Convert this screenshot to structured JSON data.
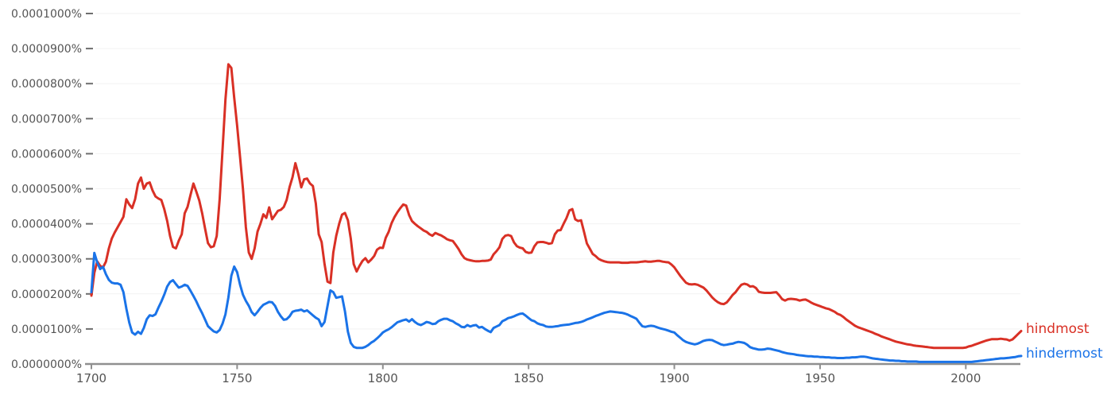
{
  "chart_data": {
    "type": "line",
    "title": "",
    "x_axis": {
      "start_year": 1700,
      "end_year": 2019,
      "tick_labels": [
        "1700",
        "1750",
        "1800",
        "1850",
        "1900",
        "1950",
        "2000"
      ]
    },
    "y_axis": {
      "tick_labels": [
        "0.0001000%",
        "0.0000900%",
        "0.0000800%",
        "0.0000700%",
        "0.0000600%",
        "0.0000500%",
        "0.0000400%",
        "0.0000300%",
        "0.0000200%",
        "0.0000100%",
        "0.0000000%"
      ],
      "min_percent": 0,
      "max_percent": 0.0001,
      "value_unit": "1e-7 percent (stored values x 1e-7 = displayed %)"
    },
    "grid": true,
    "legend_position": "right-end-of-line",
    "colors": {
      "gridline": "#f2f2f2",
      "axis_line": "#8f8f8f",
      "tick": "#6e6e6e",
      "axis_label": "#545454"
    },
    "series": [
      {
        "name": "hindmost",
        "color": "#d93025",
        "start_year": 1700,
        "step_years": 1,
        "values": [
          195,
          260,
          293,
          280,
          276,
          292,
          330,
          358,
          375,
          390,
          405,
          420,
          470,
          455,
          445,
          470,
          515,
          532,
          500,
          515,
          518,
          495,
          478,
          472,
          468,
          442,
          408,
          365,
          334,
          330,
          352,
          370,
          430,
          448,
          482,
          515,
          492,
          467,
          430,
          387,
          345,
          333,
          336,
          365,
          470,
          610,
          755,
          855,
          845,
          760,
          680,
          590,
          500,
          390,
          318,
          300,
          330,
          378,
          400,
          427,
          417,
          447,
          413,
          425,
          437,
          440,
          448,
          468,
          505,
          533,
          573,
          542,
          504,
          527,
          529,
          515,
          508,
          458,
          370,
          348,
          285,
          235,
          231,
          318,
          366,
          400,
          426,
          431,
          410,
          358,
          285,
          264,
          280,
          294,
          302,
          290,
          298,
          308,
          326,
          332,
          331,
          360,
          377,
          402,
          419,
          433,
          445,
          455,
          452,
          425,
          408,
          400,
          393,
          387,
          381,
          377,
          370,
          366,
          374,
          370,
          367,
          362,
          356,
          353,
          351,
          340,
          328,
          313,
          302,
          298,
          296,
          294,
          293,
          293,
          294,
          294,
          295,
          298,
          313,
          322,
          333,
          357,
          366,
          368,
          365,
          347,
          336,
          332,
          330,
          320,
          317,
          318,
          336,
          347,
          348,
          348,
          346,
          343,
          345,
          370,
          381,
          382,
          400,
          416,
          438,
          442,
          413,
          408,
          410,
          378,
          344,
          329,
          314,
          308,
          300,
          296,
          293,
          291,
          290,
          290,
          290,
          290,
          289,
          289,
          289,
          290,
          290,
          290,
          291,
          292,
          293,
          292,
          292,
          293,
          294,
          294,
          292,
          291,
          290,
          284,
          276,
          264,
          252,
          242,
          232,
          228,
          227,
          228,
          226,
          222,
          218,
          210,
          200,
          190,
          182,
          176,
          172,
          171,
          176,
          186,
          197,
          205,
          216,
          226,
          229,
          227,
          221,
          222,
          217,
          206,
          204,
          203,
          203,
          203,
          204,
          205,
          196,
          185,
          181,
          185,
          186,
          185,
          184,
          181,
          183,
          184,
          180,
          175,
          171,
          168,
          165,
          162,
          159,
          157,
          153,
          149,
          143,
          140,
          134,
          127,
          121,
          115,
          109,
          105,
          102,
          99,
          96,
          93,
          90,
          86,
          83,
          79,
          76,
          73,
          70,
          67,
          64,
          62,
          60,
          58,
          56,
          55,
          53,
          52,
          51,
          50,
          49,
          48,
          47,
          46,
          46,
          46,
          46,
          46,
          46,
          46,
          46,
          46,
          46,
          46,
          47,
          50,
          52,
          55,
          58,
          61,
          64,
          67,
          69,
          71,
          71,
          71,
          72,
          71,
          70,
          67,
          70,
          78,
          86,
          94
        ]
      },
      {
        "name": "hindermost",
        "color": "#1a73e8",
        "start_year": 1700,
        "step_years": 1,
        "values": [
          205,
          317,
          290,
          271,
          277,
          256,
          240,
          232,
          230,
          230,
          226,
          205,
          158,
          118,
          90,
          84,
          92,
          86,
          103,
          128,
          139,
          137,
          142,
          161,
          178,
          198,
          221,
          234,
          239,
          228,
          218,
          221,
          226,
          223,
          209,
          194,
          179,
          161,
          145,
          127,
          108,
          100,
          93,
          90,
          97,
          115,
          142,
          190,
          252,
          278,
          262,
          226,
          198,
          180,
          166,
          148,
          139,
          149,
          160,
          169,
          173,
          177,
          176,
          166,
          149,
          136,
          126,
          128,
          136,
          149,
          152,
          153,
          155,
          150,
          153,
          146,
          139,
          132,
          127,
          108,
          120,
          165,
          210,
          205,
          189,
          191,
          193,
          150,
          92,
          60,
          49,
          46,
          46,
          46,
          49,
          54,
          61,
          66,
          73,
          81,
          90,
          95,
          99,
          105,
          112,
          119,
          122,
          125,
          127,
          121,
          128,
          120,
          114,
          111,
          115,
          120,
          118,
          114,
          115,
          122,
          126,
          129,
          129,
          125,
          122,
          116,
          112,
          106,
          105,
          111,
          107,
          110,
          111,
          104,
          106,
          100,
          95,
          91,
          103,
          107,
          111,
          122,
          126,
          131,
          133,
          136,
          140,
          143,
          144,
          138,
          131,
          125,
          122,
          116,
          113,
          111,
          107,
          106,
          106,
          107,
          108,
          110,
          111,
          112,
          113,
          115,
          117,
          118,
          120,
          123,
          127,
          130,
          133,
          137,
          140,
          143,
          146,
          148,
          150,
          149,
          148,
          147,
          146,
          144,
          141,
          137,
          133,
          129,
          118,
          108,
          106,
          108,
          109,
          108,
          105,
          102,
          100,
          98,
          95,
          92,
          90,
          82,
          75,
          68,
          63,
          60,
          58,
          56,
          58,
          62,
          66,
          68,
          69,
          68,
          64,
          60,
          56,
          54,
          55,
          57,
          58,
          61,
          63,
          62,
          60,
          55,
          48,
          45,
          43,
          41,
          41,
          42,
          44,
          43,
          41,
          39,
          37,
          34,
          32,
          30,
          29,
          28,
          26,
          25,
          24,
          23,
          22,
          22,
          21,
          21,
          20,
          20,
          19,
          19,
          18,
          18,
          17,
          17,
          17,
          18,
          18,
          19,
          19,
          20,
          21,
          21,
          20,
          18,
          16,
          15,
          14,
          13,
          12,
          11,
          10,
          10,
          9,
          9,
          8,
          8,
          7,
          7,
          7,
          7,
          6,
          6,
          6,
          6,
          6,
          6,
          6,
          6,
          6,
          6,
          6,
          6,
          6,
          6,
          6,
          6,
          6,
          6,
          6,
          7,
          8,
          9,
          10,
          11,
          12,
          13,
          14,
          15,
          16,
          16,
          17,
          18,
          19,
          20,
          22,
          23
        ]
      }
    ]
  }
}
